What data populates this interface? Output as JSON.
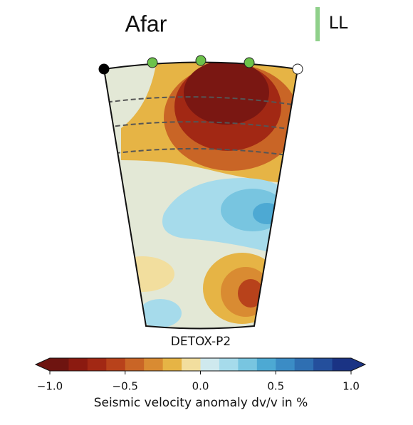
{
  "chart_data": {
    "type": "colorbar",
    "title": "Afar",
    "tag": "LL",
    "subtitle": "DETOX-P2",
    "xlabel": "Seismic velocity anomaly dv/v in %",
    "xlim": [
      -1,
      1
    ],
    "xticks": [
      {
        "value": -1,
        "label": "−1.0"
      },
      {
        "value": -0.5,
        "label": "−0.5"
      },
      {
        "value": 0,
        "label": "0.0"
      },
      0.5,
      {
        "value": 1,
        "label": "1.0"
      }
    ],
    "colors": [
      "#6e1410",
      "#8b1a10",
      "#a22814",
      "#b8421b",
      "#c96526",
      "#d98b32",
      "#e6b445",
      "#f2de9e",
      "#cfe9ee",
      "#a6dbeb",
      "#78c5e0",
      "#4da9d3",
      "#3b8cc5",
      "#2f6fb2",
      "#244f9c",
      "#1a3384"
    ]
  }
}
